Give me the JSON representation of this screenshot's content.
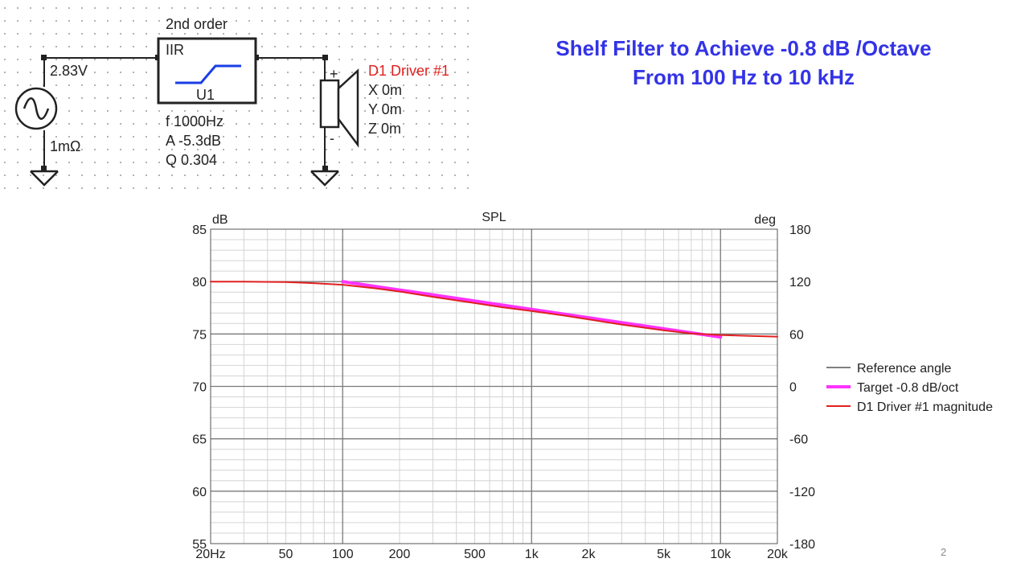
{
  "slide": {
    "title_line1": "Shelf Filter to Achieve -0.8 dB /Octave",
    "title_line2": "From 100 Hz to 10 kHz",
    "page_number": "2",
    "accent_color": "#3333e6"
  },
  "schematic": {
    "source": {
      "voltage": "2.83V",
      "resistance": "1mΩ",
      "icon": "ac-source-icon"
    },
    "filter": {
      "heading": "2nd order",
      "type": "IIR",
      "id": "U1",
      "f": "f  1000Hz",
      "A": "A  -5.3dB",
      "Q": "Q  0.304",
      "icon": "shelf-response-icon"
    },
    "driver": {
      "name": "D1 Driver #1",
      "x": "X 0m",
      "y": "Y 0m",
      "z": "Z 0m",
      "plus": "+",
      "minus": "-",
      "icon": "speaker-icon",
      "name_color": "#e0201f"
    },
    "ground_icon": "ground-icon"
  },
  "chart_data": {
    "type": "line",
    "title": "SPL",
    "ylabel": "dB",
    "y2label": "deg",
    "xscale": "log",
    "xlim": [
      20,
      20000
    ],
    "ylim": [
      55,
      85
    ],
    "y2lim": [
      -180,
      180
    ],
    "x_ticks": [
      20,
      50,
      100,
      200,
      500,
      1000,
      2000,
      5000,
      10000,
      20000
    ],
    "x_tick_labels": [
      "20Hz",
      "50",
      "100",
      "200",
      "500",
      "1k",
      "2k",
      "5k",
      "10k",
      "20k"
    ],
    "y_ticks": [
      55,
      60,
      65,
      70,
      75,
      80,
      85
    ],
    "y_tick_labels": [
      "55",
      "60",
      "65",
      "70",
      "75",
      "80",
      "85"
    ],
    "y2_ticks": [
      -180,
      -120,
      -60,
      0,
      60,
      120,
      180
    ],
    "y2_tick_labels": [
      "-180",
      "-120",
      "-60",
      "0",
      "60",
      "120",
      "180"
    ],
    "grid": true,
    "legend_position": "right",
    "series": [
      {
        "name": "Reference angle",
        "color": "#808080",
        "x": [],
        "y": []
      },
      {
        "name": "Target -0.8 dB/oct",
        "color": "#ff33ff",
        "x": [
          100,
          10000
        ],
        "y": [
          80.0,
          74.7
        ]
      },
      {
        "name": "D1 Driver #1 magnitude",
        "color": "#e0201f",
        "x": [
          20,
          30,
          50,
          70,
          100,
          150,
          200,
          300,
          500,
          700,
          1000,
          1500,
          2000,
          3000,
          5000,
          7000,
          10000,
          15000,
          20000
        ],
        "y": [
          80.0,
          80.0,
          79.95,
          79.85,
          79.7,
          79.35,
          79.05,
          78.55,
          77.95,
          77.55,
          77.2,
          76.75,
          76.4,
          75.9,
          75.35,
          75.05,
          74.9,
          74.8,
          74.75
        ]
      }
    ]
  }
}
